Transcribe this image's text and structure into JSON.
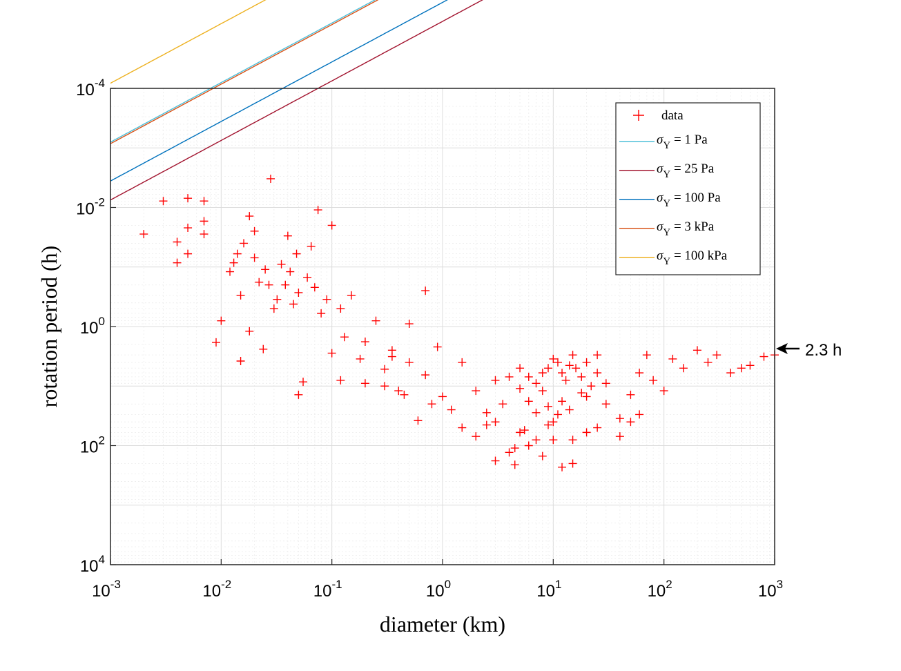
{
  "chart_data": {
    "type": "scatter",
    "title": "",
    "xlabel": "diameter (km)",
    "ylabel": "rotation period (h)",
    "x_scale": "log",
    "y_scale": "log",
    "y_reversed": true,
    "xlim": [
      0.001,
      1000
    ],
    "ylim": [
      0.0001,
      10000
    ],
    "x_ticks": [
      {
        "base": "10",
        "exp": "-3"
      },
      {
        "base": "10",
        "exp": "-2"
      },
      {
        "base": "10",
        "exp": "-1"
      },
      {
        "base": "10",
        "exp": "0"
      },
      {
        "base": "10",
        "exp": "1"
      },
      {
        "base": "10",
        "exp": "2"
      },
      {
        "base": "10",
        "exp": "3"
      }
    ],
    "y_ticks": [
      {
        "base": "10",
        "exp": "-4"
      },
      {
        "base": "10",
        "exp": "-2"
      },
      {
        "base": "10",
        "exp": "0"
      },
      {
        "base": "10",
        "exp": "2"
      },
      {
        "base": "10",
        "exp": "4"
      }
    ],
    "grid": true,
    "legend_position": "top-right",
    "legend": [
      {
        "symbol": "σ",
        "sub": "Y",
        "text": "=   1 Pa",
        "color": "#4dbfd9"
      },
      {
        "symbol": "σ",
        "sub": "Y",
        "text": "= 25 Pa",
        "color": "#a2142f"
      },
      {
        "symbol": "σ",
        "sub": "Y",
        "text": "= 100 Pa",
        "color": "#0072bd"
      },
      {
        "symbol": "σ",
        "sub": "Y",
        "text": "=  3 kPa",
        "color": "#d95319"
      },
      {
        "symbol": "σ",
        "sub": "Y",
        "text": "= 100 kPa",
        "color": "#edb120"
      }
    ],
    "data_series": {
      "name": "data",
      "color": "#ff0000",
      "points": [
        [
          0.002,
          0.028
        ],
        [
          0.003,
          0.0078
        ],
        [
          0.004,
          0.085
        ],
        [
          0.004,
          0.038
        ],
        [
          0.005,
          0.007
        ],
        [
          0.005,
          0.06
        ],
        [
          0.005,
          0.022
        ],
        [
          0.007,
          0.0078
        ],
        [
          0.007,
          0.017
        ],
        [
          0.007,
          0.028
        ],
        [
          0.009,
          1.85
        ],
        [
          0.01,
          0.8
        ],
        [
          0.012,
          0.12
        ],
        [
          0.013,
          0.085
        ],
        [
          0.014,
          0.06
        ],
        [
          0.015,
          0.3
        ],
        [
          0.015,
          3.8
        ],
        [
          0.016,
          0.04
        ],
        [
          0.018,
          0.014
        ],
        [
          0.018,
          1.2
        ],
        [
          0.02,
          0.025
        ],
        [
          0.02,
          0.07
        ],
        [
          0.022,
          0.18
        ],
        [
          0.024,
          2.4
        ],
        [
          0.025,
          0.11
        ],
        [
          0.027,
          0.2
        ],
        [
          0.028,
          0.0033
        ],
        [
          0.03,
          0.5
        ],
        [
          0.032,
          0.35
        ],
        [
          0.035,
          0.09
        ],
        [
          0.038,
          0.2
        ],
        [
          0.04,
          0.03
        ],
        [
          0.042,
          0.12
        ],
        [
          0.045,
          0.42
        ],
        [
          0.048,
          0.06
        ],
        [
          0.05,
          0.27
        ],
        [
          0.055,
          8.5
        ],
        [
          0.06,
          0.15
        ],
        [
          0.065,
          0.045
        ],
        [
          0.07,
          0.22
        ],
        [
          0.075,
          0.011
        ],
        [
          0.08,
          0.6
        ],
        [
          0.09,
          0.35
        ],
        [
          0.1,
          2.8
        ],
        [
          0.1,
          0.02
        ],
        [
          0.12,
          0.5
        ],
        [
          0.13,
          1.5
        ],
        [
          0.15,
          0.3
        ],
        [
          0.18,
          3.5
        ],
        [
          0.2,
          1.8
        ],
        [
          0.25,
          0.8
        ],
        [
          0.3,
          5.2
        ],
        [
          0.35,
          2.5
        ],
        [
          0.4,
          12
        ],
        [
          0.5,
          0.9
        ],
        [
          0.6,
          38
        ],
        [
          0.7,
          0.25
        ],
        [
          0.8,
          20
        ],
        [
          0.05,
          14
        ],
        [
          0.12,
          8
        ],
        [
          0.2,
          9
        ],
        [
          0.3,
          10
        ],
        [
          0.35,
          3.2
        ],
        [
          0.45,
          14
        ],
        [
          0.5,
          4
        ],
        [
          0.7,
          6.5
        ],
        [
          0.9,
          2.2
        ],
        [
          1,
          15
        ],
        [
          1.2,
          25
        ],
        [
          1.5,
          4
        ],
        [
          2,
          70
        ],
        [
          2.5,
          28
        ],
        [
          3,
          40
        ],
        [
          4,
          130
        ],
        [
          4.5,
          110
        ],
        [
          5,
          5
        ],
        [
          6,
          7
        ],
        [
          7,
          9
        ],
        [
          8,
          12
        ],
        [
          9,
          22
        ],
        [
          10,
          40
        ],
        [
          12,
          18
        ],
        [
          15,
          80
        ],
        [
          20,
          15
        ],
        [
          25,
          6
        ],
        [
          30,
          9
        ],
        [
          40,
          35
        ],
        [
          50,
          14
        ],
        [
          60,
          6
        ],
        [
          70,
          3
        ],
        [
          80,
          8
        ],
        [
          100,
          12
        ],
        [
          120,
          3.5
        ],
        [
          150,
          5
        ],
        [
          200,
          2.5
        ],
        [
          250,
          4
        ],
        [
          300,
          3
        ],
        [
          400,
          6
        ],
        [
          500,
          5
        ],
        [
          600,
          4.5
        ],
        [
          800,
          3.2
        ],
        [
          1000,
          3
        ],
        [
          1.5,
          50
        ],
        [
          2.5,
          45
        ],
        [
          3.5,
          20
        ],
        [
          5,
          60
        ],
        [
          6,
          100
        ],
        [
          8,
          150
        ],
        [
          10,
          80
        ],
        [
          12,
          230
        ],
        [
          15,
          200
        ],
        [
          20,
          60
        ],
        [
          25,
          50
        ],
        [
          30,
          20
        ],
        [
          40,
          70
        ],
        [
          50,
          40
        ],
        [
          60,
          30
        ],
        [
          3,
          180
        ],
        [
          4.5,
          210
        ],
        [
          5.5,
          55
        ],
        [
          7,
          80
        ],
        [
          9,
          45
        ],
        [
          11,
          30
        ],
        [
          14,
          25
        ],
        [
          18,
          13
        ],
        [
          22,
          10
        ],
        [
          2,
          12
        ],
        [
          3,
          8
        ],
        [
          4,
          7
        ],
        [
          5,
          11
        ],
        [
          6,
          18
        ],
        [
          7,
          28
        ],
        [
          8,
          6
        ],
        [
          9,
          5
        ],
        [
          10,
          3.5
        ],
        [
          11,
          4
        ],
        [
          12,
          6
        ],
        [
          13,
          8
        ],
        [
          14,
          4.5
        ],
        [
          15,
          3
        ],
        [
          16,
          5
        ],
        [
          18,
          7
        ],
        [
          20,
          4
        ],
        [
          25,
          3
        ]
      ]
    },
    "annotation": {
      "text": "2.3 h",
      "y_value": 2.3
    }
  }
}
